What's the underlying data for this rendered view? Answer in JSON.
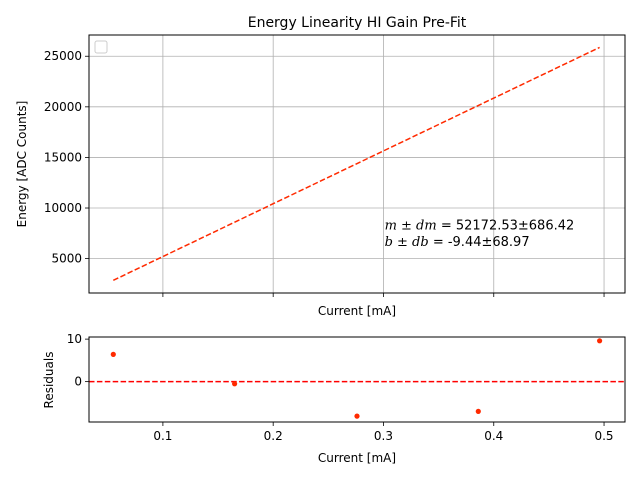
{
  "chart_data": [
    {
      "type": "line",
      "title": "Energy Linearity HI Gain Pre-Fit",
      "xlabel": "Current [mA]",
      "ylabel": "Energy [ADC Counts]",
      "xlim": [
        0.033,
        0.519
      ],
      "ylim": [
        1600,
        27100
      ],
      "grid": true,
      "legend": "top-left",
      "legend_entries": [],
      "x_ticks": [
        0.1,
        0.2,
        0.3,
        0.4,
        0.5
      ],
      "y_ticks": [
        5000,
        10000,
        15000,
        20000,
        25000
      ],
      "y_tick_labels": [
        "5000",
        "10000",
        "15000",
        "20000",
        "25000"
      ],
      "series": [
        {
          "style": "dashed",
          "color": "#ff2a00",
          "x": [
            0.055,
            0.496
          ],
          "y": [
            2860,
            25870
          ]
        }
      ],
      "annotations": [
        {
          "math": "m ± dm",
          "text": " = 52172.53±686.42",
          "x": 0.301,
          "y": 7900
        },
        {
          "math": "b ± db",
          "text": " = -9.44±68.97",
          "x": 0.301,
          "y": 6250
        }
      ]
    },
    {
      "type": "scatter",
      "xlabel": "Current [mA]",
      "ylabel": "Residuals",
      "xlim": [
        0.033,
        0.519
      ],
      "ylim": [
        -9.5,
        10.5
      ],
      "grid": false,
      "x_ticks": [
        0.1,
        0.2,
        0.3,
        0.4,
        0.5
      ],
      "x_tick_labels": [
        "0.1",
        "0.2",
        "0.3",
        "0.4",
        "0.5"
      ],
      "y_ticks": [
        0,
        10
      ],
      "y_tick_labels": [
        "0",
        "10"
      ],
      "series": [
        {
          "color": "#ff2a00",
          "x": [
            0.055,
            0.165,
            0.276,
            0.386,
            0.496
          ],
          "y": [
            6.4,
            -0.5,
            -8.1,
            -7.0,
            9.6
          ]
        }
      ],
      "reference_line": {
        "y": 0,
        "style": "dashed",
        "color": "#ff0000"
      }
    }
  ]
}
